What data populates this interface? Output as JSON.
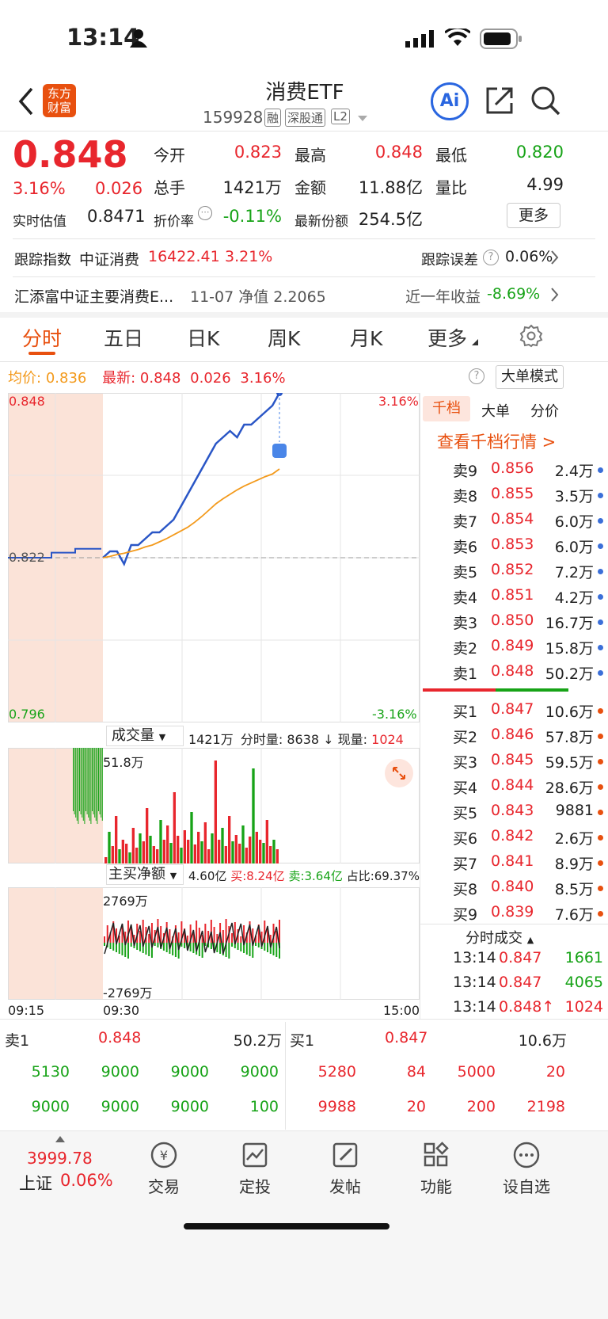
{
  "status": {
    "time": "13:14"
  },
  "header": {
    "logo_top": "东方",
    "logo_bottom": "财富",
    "title": "消费ETF",
    "code": "159928",
    "tags": [
      "融",
      "深股通",
      "L2"
    ],
    "ai": "Ai"
  },
  "quote": {
    "price": "0.848",
    "pct": "3.16%",
    "change": "0.026",
    "est_label": "实时估值",
    "est": "0.8471",
    "cells": [
      {
        "label": "今开",
        "value": "0.823"
      },
      {
        "label": "最高",
        "value": "0.848"
      },
      {
        "label": "最低",
        "value": "0.820"
      },
      {
        "label": "总手",
        "value": "1421万"
      },
      {
        "label": "金额",
        "value": "11.88亿"
      },
      {
        "label": "量比",
        "value": "4.99"
      },
      {
        "label": "折价率",
        "value": "-0.11%"
      },
      {
        "label": "最新份额",
        "value": "254.5亿"
      }
    ],
    "more_btn": "更多"
  },
  "tracking": {
    "label": "跟踪指数",
    "index": "中证消费",
    "value": "16422.41",
    "pct": "3.21%",
    "err_label": "跟踪误差",
    "err": "0.06%"
  },
  "fund": {
    "name": "汇添富中证主要消费E...",
    "nav": "11-07 净值 2.2065",
    "yr_label": "近一年收益",
    "yr": "-8.69%"
  },
  "tabs": [
    "分时",
    "五日",
    "日K",
    "周K",
    "月K",
    "更多"
  ],
  "chart_header": {
    "avg_label": "均价:",
    "avg": "0.836",
    "latest_label": "最新:",
    "latest": "0.848",
    "chg": "0.026",
    "pct": "3.16%",
    "mode_btn": "大单模式"
  },
  "chart_data": {
    "type": "line",
    "price_axis": {
      "top": "0.848",
      "mid": "0.822",
      "bottom": "0.796",
      "top_pct": "3.16%",
      "bottom_pct": "-3.16%",
      "ylim": [
        0.796,
        0.848
      ],
      "prev_close": 0.822
    },
    "times": [
      "09:15",
      "09:30",
      "15:00"
    ],
    "series": [
      {
        "name": "price",
        "values": [
          0.822,
          0.823,
          0.823,
          0.821,
          0.824,
          0.824,
          0.825,
          0.826,
          0.826,
          0.827,
          0.828,
          0.83,
          0.832,
          0.834,
          0.836,
          0.838,
          0.84,
          0.841,
          0.842,
          0.841,
          0.843,
          0.843,
          0.844,
          0.845,
          0.846,
          0.848
        ]
      },
      {
        "name": "avg",
        "values": [
          0.822,
          0.8222,
          0.8225,
          0.8227,
          0.823,
          0.8233,
          0.8237,
          0.824,
          0.8245,
          0.825,
          0.8256,
          0.8262,
          0.8268,
          0.8276,
          0.8285,
          0.8295,
          0.8305,
          0.8313,
          0.832,
          0.8327,
          0.8333,
          0.8338,
          0.8343,
          0.8348,
          0.8352,
          0.836
        ]
      }
    ],
    "volume": {
      "label": "成交量",
      "total": "1421万",
      "period_label": "分时量:",
      "period": "8638",
      "cur_label": "现量:",
      "cur": "1024",
      "max": "51.8万"
    },
    "netbuy": {
      "label": "主买净额",
      "total": "4.60亿",
      "buy_label": "买:",
      "buy": "8.24亿",
      "sell_label": "卖:",
      "sell": "3.64亿",
      "ratio_label": "占比:",
      "ratio": "69.37%",
      "max": "2769万",
      "min": "-2769万"
    }
  },
  "depth": {
    "tabs": [
      "千档",
      "大单",
      "分价"
    ],
    "link": "查看千档行情 >",
    "asks": [
      [
        "卖9",
        "0.856",
        "2.4万"
      ],
      [
        "卖8",
        "0.855",
        "3.5万"
      ],
      [
        "卖7",
        "0.854",
        "6.0万"
      ],
      [
        "卖6",
        "0.853",
        "6.0万"
      ],
      [
        "卖5",
        "0.852",
        "7.2万"
      ],
      [
        "卖4",
        "0.851",
        "4.2万"
      ],
      [
        "卖3",
        "0.850",
        "16.7万"
      ],
      [
        "卖2",
        "0.849",
        "15.8万"
      ],
      [
        "卖1",
        "0.848",
        "50.2万"
      ]
    ],
    "bids": [
      [
        "买1",
        "0.847",
        "10.6万"
      ],
      [
        "买2",
        "0.846",
        "57.8万"
      ],
      [
        "买3",
        "0.845",
        "59.5万"
      ],
      [
        "买4",
        "0.844",
        "28.6万"
      ],
      [
        "买5",
        "0.843",
        "9881"
      ],
      [
        "买6",
        "0.842",
        "2.6万"
      ],
      [
        "买7",
        "0.841",
        "8.9万"
      ],
      [
        "买8",
        "0.840",
        "8.5万"
      ],
      [
        "买9",
        "0.839",
        "7.6万"
      ]
    ],
    "trades_title": "分时成交",
    "trades": [
      [
        "13:14",
        "0.847",
        "1661"
      ],
      [
        "13:14",
        "0.847",
        "4065"
      ],
      [
        "13:14",
        "0.848↑",
        "1024"
      ]
    ]
  },
  "queue": {
    "sell_label": "卖1",
    "sell_price": "0.848",
    "sell_vol": "50.2万",
    "buy_label": "买1",
    "buy_price": "0.847",
    "buy_vol": "10.6万",
    "sell_orders": [
      "5130",
      "9000",
      "9000",
      "9000",
      "9000",
      "9000",
      "9000",
      "100"
    ],
    "buy_orders": [
      "5280",
      "84",
      "5000",
      "20",
      "9988",
      "20",
      "200",
      "2198"
    ]
  },
  "bottom": {
    "index_value": "3999.78",
    "index_name": "上证",
    "index_pct": "0.06%",
    "items": [
      "交易",
      "定投",
      "发帖",
      "功能",
      "设自选"
    ]
  },
  "colors": {
    "up": "#e8262d",
    "down": "#17a317",
    "avg": "#f39a1c",
    "line": "#2a56c6",
    "accent": "#e8500f"
  }
}
